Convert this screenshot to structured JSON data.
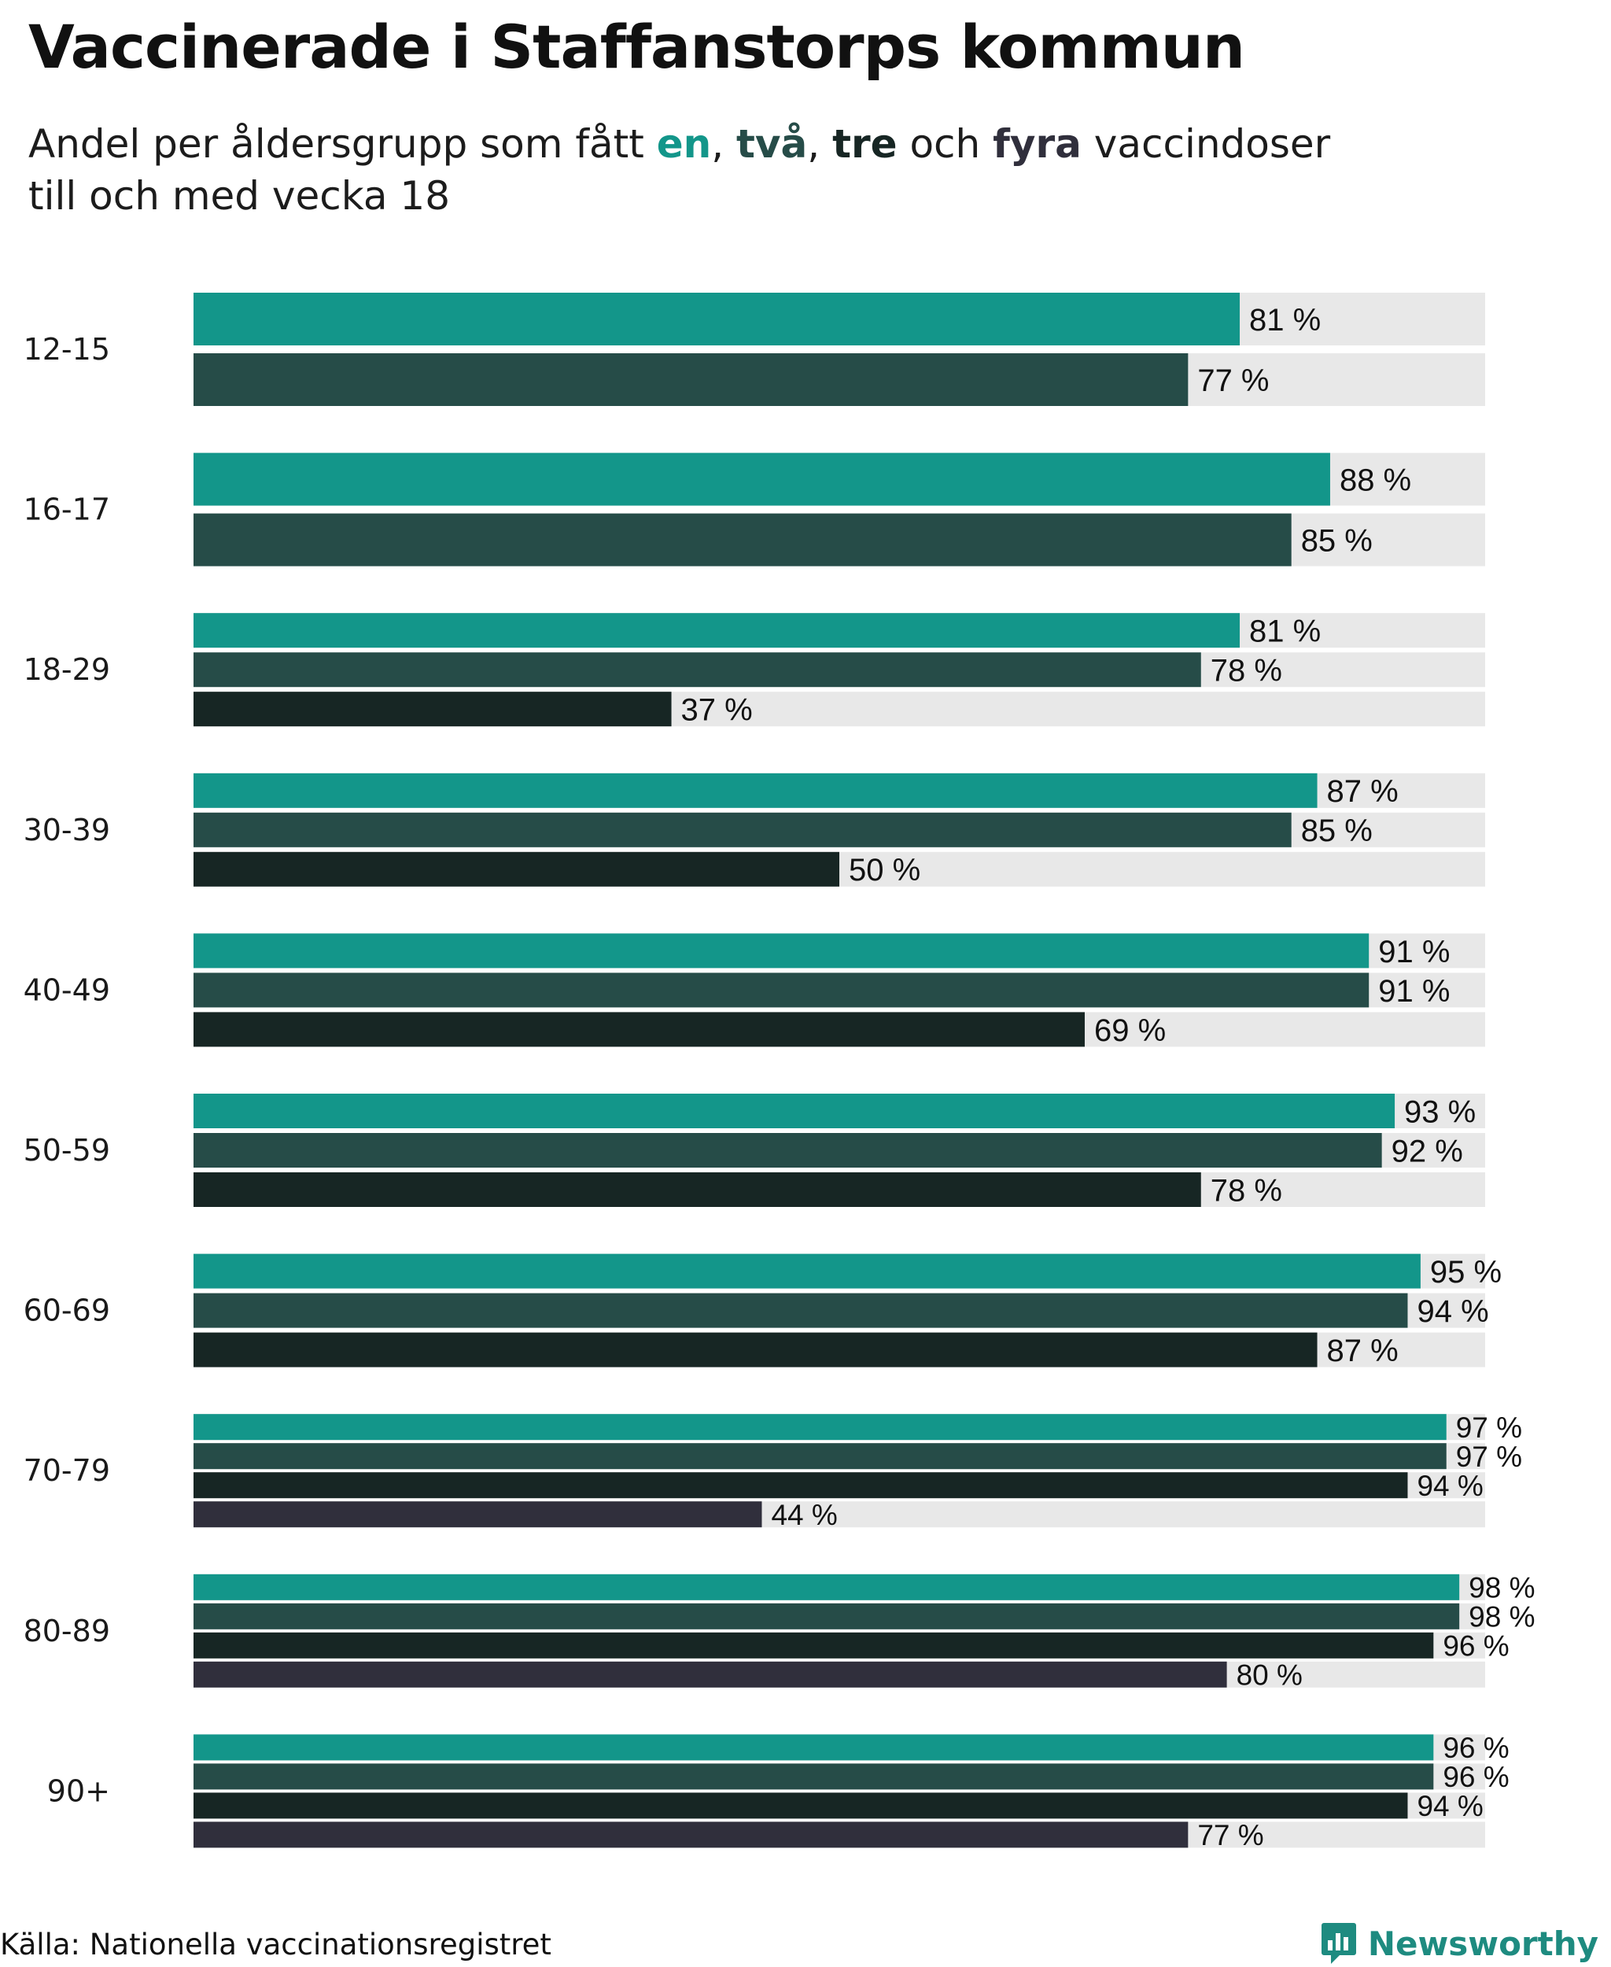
{
  "colors": {
    "en": "#13968a",
    "tva": "#264c48",
    "tre": "#172624",
    "fyra": "#302f3c",
    "track": "#e8e8e8",
    "brand": "#1e8b80"
  },
  "header": {
    "title": "Vaccinerade i Staffanstorps kommun",
    "subtitle_prefix": "Andel per åldersgrupp som fått ",
    "en": "en",
    "sep1": ", ",
    "tva": "två",
    "sep2": ", ",
    "tre": "tre",
    "och": " och ",
    "fyra": "fyra",
    "subtitle_suffix": " vaccindoser",
    "subtitle_line2": "till och med vecka 18"
  },
  "footer": {
    "source": "Källa: Nationella vaccinationsregistret",
    "brand": "Newsworthy",
    "logo_icon": "newsworthy-logo-icon"
  },
  "chart_data": {
    "type": "bar",
    "orientation": "horizontal",
    "title": "Vaccinerade i Staffanstorps kommun",
    "subtitle": "Andel per åldersgrupp som fått en, två, tre och fyra vaccindoser till och med vecka 18",
    "xlim": [
      0,
      100
    ],
    "value_suffix": " %",
    "grid": false,
    "categories": [
      "12-15",
      "16-17",
      "18-29",
      "30-39",
      "40-49",
      "50-59",
      "60-69",
      "70-79",
      "80-89",
      "90+"
    ],
    "series": [
      {
        "name": "en",
        "color": "#13968a",
        "values": [
          81,
          88,
          81,
          87,
          91,
          93,
          95,
          97,
          98,
          96
        ]
      },
      {
        "name": "två",
        "color": "#264c48",
        "values": [
          77,
          85,
          78,
          85,
          91,
          92,
          94,
          97,
          98,
          96
        ]
      },
      {
        "name": "tre",
        "color": "#172624",
        "values": [
          null,
          null,
          37,
          50,
          69,
          78,
          87,
          94,
          96,
          94
        ]
      },
      {
        "name": "fyra",
        "color": "#302f3c",
        "values": [
          null,
          null,
          null,
          null,
          null,
          null,
          null,
          44,
          80,
          77
        ]
      }
    ]
  }
}
